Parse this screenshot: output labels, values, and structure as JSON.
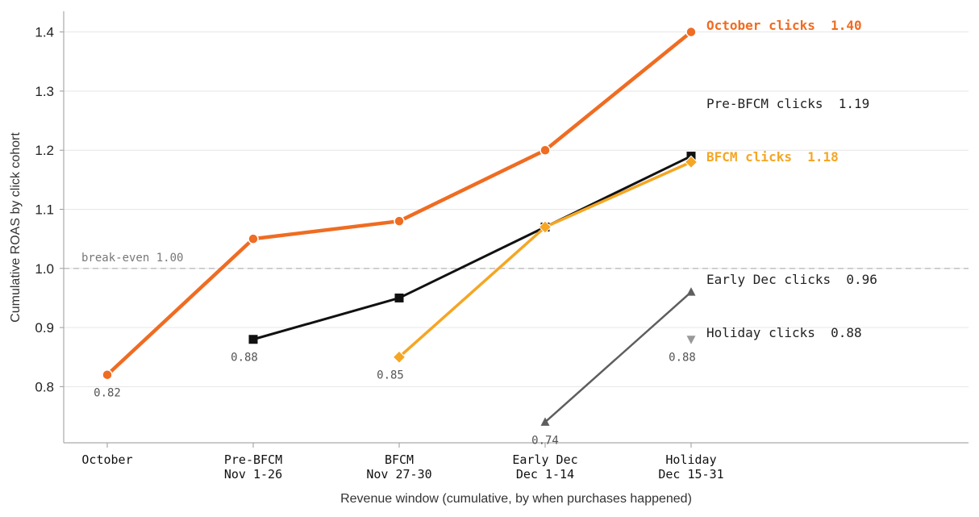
{
  "chart_data": {
    "type": "line",
    "categories": [
      "October",
      "Pre-BFCM\nNov 1-26",
      "BFCM\nNov 27-30",
      "Early Dec\nDec 1-14",
      "Holiday\nDec 15-31"
    ],
    "xlabel": "Revenue window (cumulative, by when purchases happened)",
    "ylabel": "Cumulative ROAS by click cohort",
    "ylim": [
      0.705,
      1.435
    ],
    "yticks": [
      0.8,
      0.9,
      1.0,
      1.1,
      1.2,
      1.3,
      1.4
    ],
    "ytick_labels": [
      "0.8",
      "0.9",
      "1.0",
      "1.1",
      "1.2",
      "1.3",
      "1.4"
    ],
    "grid": "horizontal",
    "reference_line": {
      "value": 1.0,
      "label": "break-even 1.00",
      "color": "#bbbbbb"
    },
    "series": [
      {
        "name": "October clicks",
        "end_label": "October clicks  1.40",
        "start_label": "0.82",
        "color": "#ef6c22",
        "marker": "circle",
        "bold": true,
        "values": [
          0.82,
          1.05,
          1.08,
          1.2,
          1.4
        ]
      },
      {
        "name": "Pre-BFCM clicks",
        "end_label": "Pre-BFCM clicks  1.19",
        "start_label": "0.88",
        "color": "#111111",
        "label_color": "#222222",
        "marker": "square",
        "bold": false,
        "values": [
          null,
          0.88,
          0.95,
          1.07,
          1.19
        ]
      },
      {
        "name": "BFCM clicks",
        "end_label": "BFCM clicks  1.18",
        "start_label": "0.85",
        "color": "#f5a623",
        "marker": "diamond",
        "bold": true,
        "values": [
          null,
          null,
          0.85,
          1.07,
          1.18
        ]
      },
      {
        "name": "Early Dec clicks",
        "end_label": "Early Dec clicks  0.96",
        "start_label": "0.74",
        "color": "#5e5e5e",
        "label_color": "#222222",
        "marker": "triangle-up",
        "bold": false,
        "values": [
          null,
          null,
          null,
          0.74,
          0.96
        ]
      },
      {
        "name": "Holiday clicks",
        "end_label": "Holiday clicks  0.88",
        "start_label": "0.88",
        "color": "#999999",
        "label_color": "#222222",
        "marker": "triangle-down",
        "bold": false,
        "values": [
          null,
          null,
          null,
          null,
          0.88
        ]
      }
    ]
  }
}
